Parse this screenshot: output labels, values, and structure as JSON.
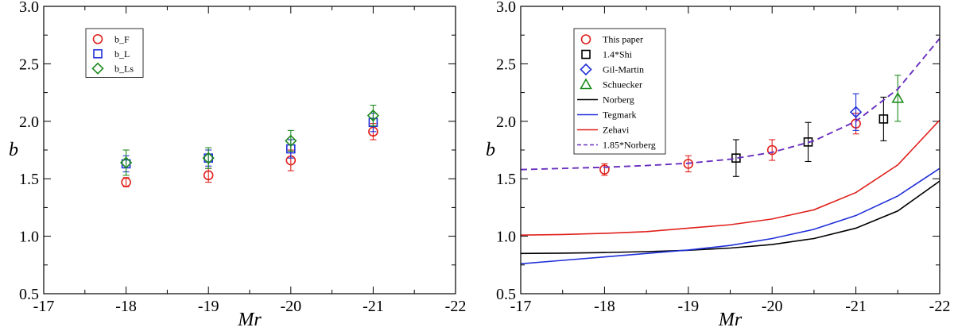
{
  "chart_data": [
    {
      "type": "scatter",
      "xlabel": "Mr",
      "ylabel": "b",
      "xlim": [
        -17,
        -22
      ],
      "ylim": [
        0.5,
        3.0
      ],
      "xticks": [
        -17,
        -18,
        -19,
        -20,
        -21,
        -22
      ],
      "yticks": [
        0.5,
        1.0,
        1.5,
        2.0,
        2.5,
        3.0
      ],
      "xtick_labels": [
        "-17",
        "-18",
        "-19",
        "-20",
        "-21",
        "-22"
      ],
      "ytick_labels": [
        "0.5",
        "1.0",
        "1.5",
        "2.0",
        "2.5",
        "3.0"
      ],
      "grid": false,
      "legend_position": "top-left",
      "series": [
        {
          "name": "b_F",
          "marker": "circle",
          "color": "#e0201b",
          "points": [
            {
              "x": -18,
              "y": 1.47,
              "err": 0.04
            },
            {
              "x": -19,
              "y": 1.53,
              "err": 0.06
            },
            {
              "x": -20,
              "y": 1.66,
              "err": 0.09
            },
            {
              "x": -21,
              "y": 1.91,
              "err": 0.07
            }
          ]
        },
        {
          "name": "b_L",
          "marker": "square",
          "color": "#1f2fd8",
          "points": [
            {
              "x": -18,
              "y": 1.63,
              "err": 0.07
            },
            {
              "x": -19,
              "y": 1.68,
              "err": 0.07
            },
            {
              "x": -20,
              "y": 1.76,
              "err": 0.08
            },
            {
              "x": -21,
              "y": 1.99,
              "err": 0.08
            }
          ]
        },
        {
          "name": "b_Ls",
          "marker": "diamond",
          "color": "#1f8a1f",
          "points": [
            {
              "x": -18,
              "y": 1.64,
              "err": 0.11
            },
            {
              "x": -19,
              "y": 1.68,
              "err": 0.09
            },
            {
              "x": -20,
              "y": 1.83,
              "err": 0.09
            },
            {
              "x": -21,
              "y": 2.05,
              "err": 0.09
            }
          ]
        }
      ]
    },
    {
      "type": "scatter",
      "xlabel": "Mr",
      "ylabel": "b",
      "xlim": [
        -17,
        -22
      ],
      "ylim": [
        0.5,
        3.0
      ],
      "xticks": [
        -17,
        -18,
        -19,
        -20,
        -21,
        -22
      ],
      "yticks": [
        0.5,
        1.0,
        1.5,
        2.0,
        2.5,
        3.0
      ],
      "xtick_labels": [
        "-17",
        "-18",
        "-19",
        "-20",
        "-21",
        "-22"
      ],
      "ytick_labels": [
        "0.5",
        "1.0",
        "1.5",
        "2.0",
        "2.5",
        "3.0"
      ],
      "grid": false,
      "legend_position": "top-left",
      "series": [
        {
          "name": "This paper",
          "marker": "circle",
          "color": "#e0201b",
          "points": [
            {
              "x": -18,
              "y": 1.58,
              "err": 0.05
            },
            {
              "x": -19,
              "y": 1.63,
              "err": 0.07
            },
            {
              "x": -20,
              "y": 1.75,
              "err": 0.09
            },
            {
              "x": -21,
              "y": 1.98,
              "err": 0.09
            }
          ]
        },
        {
          "name": "1.4*Shi",
          "marker": "square",
          "color": "#000000",
          "points": [
            {
              "x": -19.57,
              "y": 1.68,
              "err": 0.16
            },
            {
              "x": -20.43,
              "y": 1.82,
              "err": 0.17
            },
            {
              "x": -21.33,
              "y": 2.02,
              "err": 0.19
            }
          ]
        },
        {
          "name": "Gil-Martin",
          "marker": "diamond",
          "color": "#1f2fd8",
          "points": [
            {
              "x": -21,
              "y": 2.08,
              "err": 0.16
            }
          ]
        },
        {
          "name": "Schuecker",
          "marker": "triangle",
          "color": "#1f8a1f",
          "points": [
            {
              "x": -21.5,
              "y": 2.2,
              "err": 0.2
            }
          ]
        },
        {
          "name": "Norberg",
          "type": "line",
          "color": "#000000",
          "x": [
            -17,
            -17.5,
            -18,
            -18.5,
            -19,
            -19.5,
            -20,
            -20.5,
            -21,
            -21.5,
            -22
          ],
          "y": [
            0.85,
            0.853,
            0.858,
            0.866,
            0.878,
            0.897,
            0.928,
            0.98,
            1.07,
            1.22,
            1.48
          ]
        },
        {
          "name": "Tegmark",
          "type": "line",
          "color": "#1f2fd8",
          "x": [
            -17,
            -17.5,
            -18,
            -18.5,
            -19,
            -19.5,
            -20,
            -20.5,
            -21,
            -21.5,
            -22
          ],
          "y": [
            0.76,
            0.79,
            0.82,
            0.85,
            0.88,
            0.92,
            0.98,
            1.06,
            1.18,
            1.35,
            1.59
          ]
        },
        {
          "name": "Zehavi",
          "type": "line",
          "color": "#e0201b",
          "x": [
            -17,
            -17.5,
            -18,
            -18.5,
            -19,
            -19.5,
            -20,
            -20.5,
            -21,
            -21.5,
            -22
          ],
          "y": [
            1.01,
            1.015,
            1.025,
            1.04,
            1.07,
            1.1,
            1.15,
            1.23,
            1.38,
            1.62,
            2.01
          ]
        },
        {
          "name": "1.85*Norberg",
          "type": "line",
          "dashed": true,
          "color": "#6a2fc0",
          "x": [
            -17,
            -17.5,
            -18,
            -18.5,
            -19,
            -19.5,
            -20,
            -20.5,
            -21,
            -21.5,
            -22
          ],
          "y": [
            1.58,
            1.59,
            1.6,
            1.615,
            1.635,
            1.67,
            1.73,
            1.83,
            2.0,
            2.28,
            2.72
          ]
        }
      ]
    }
  ]
}
